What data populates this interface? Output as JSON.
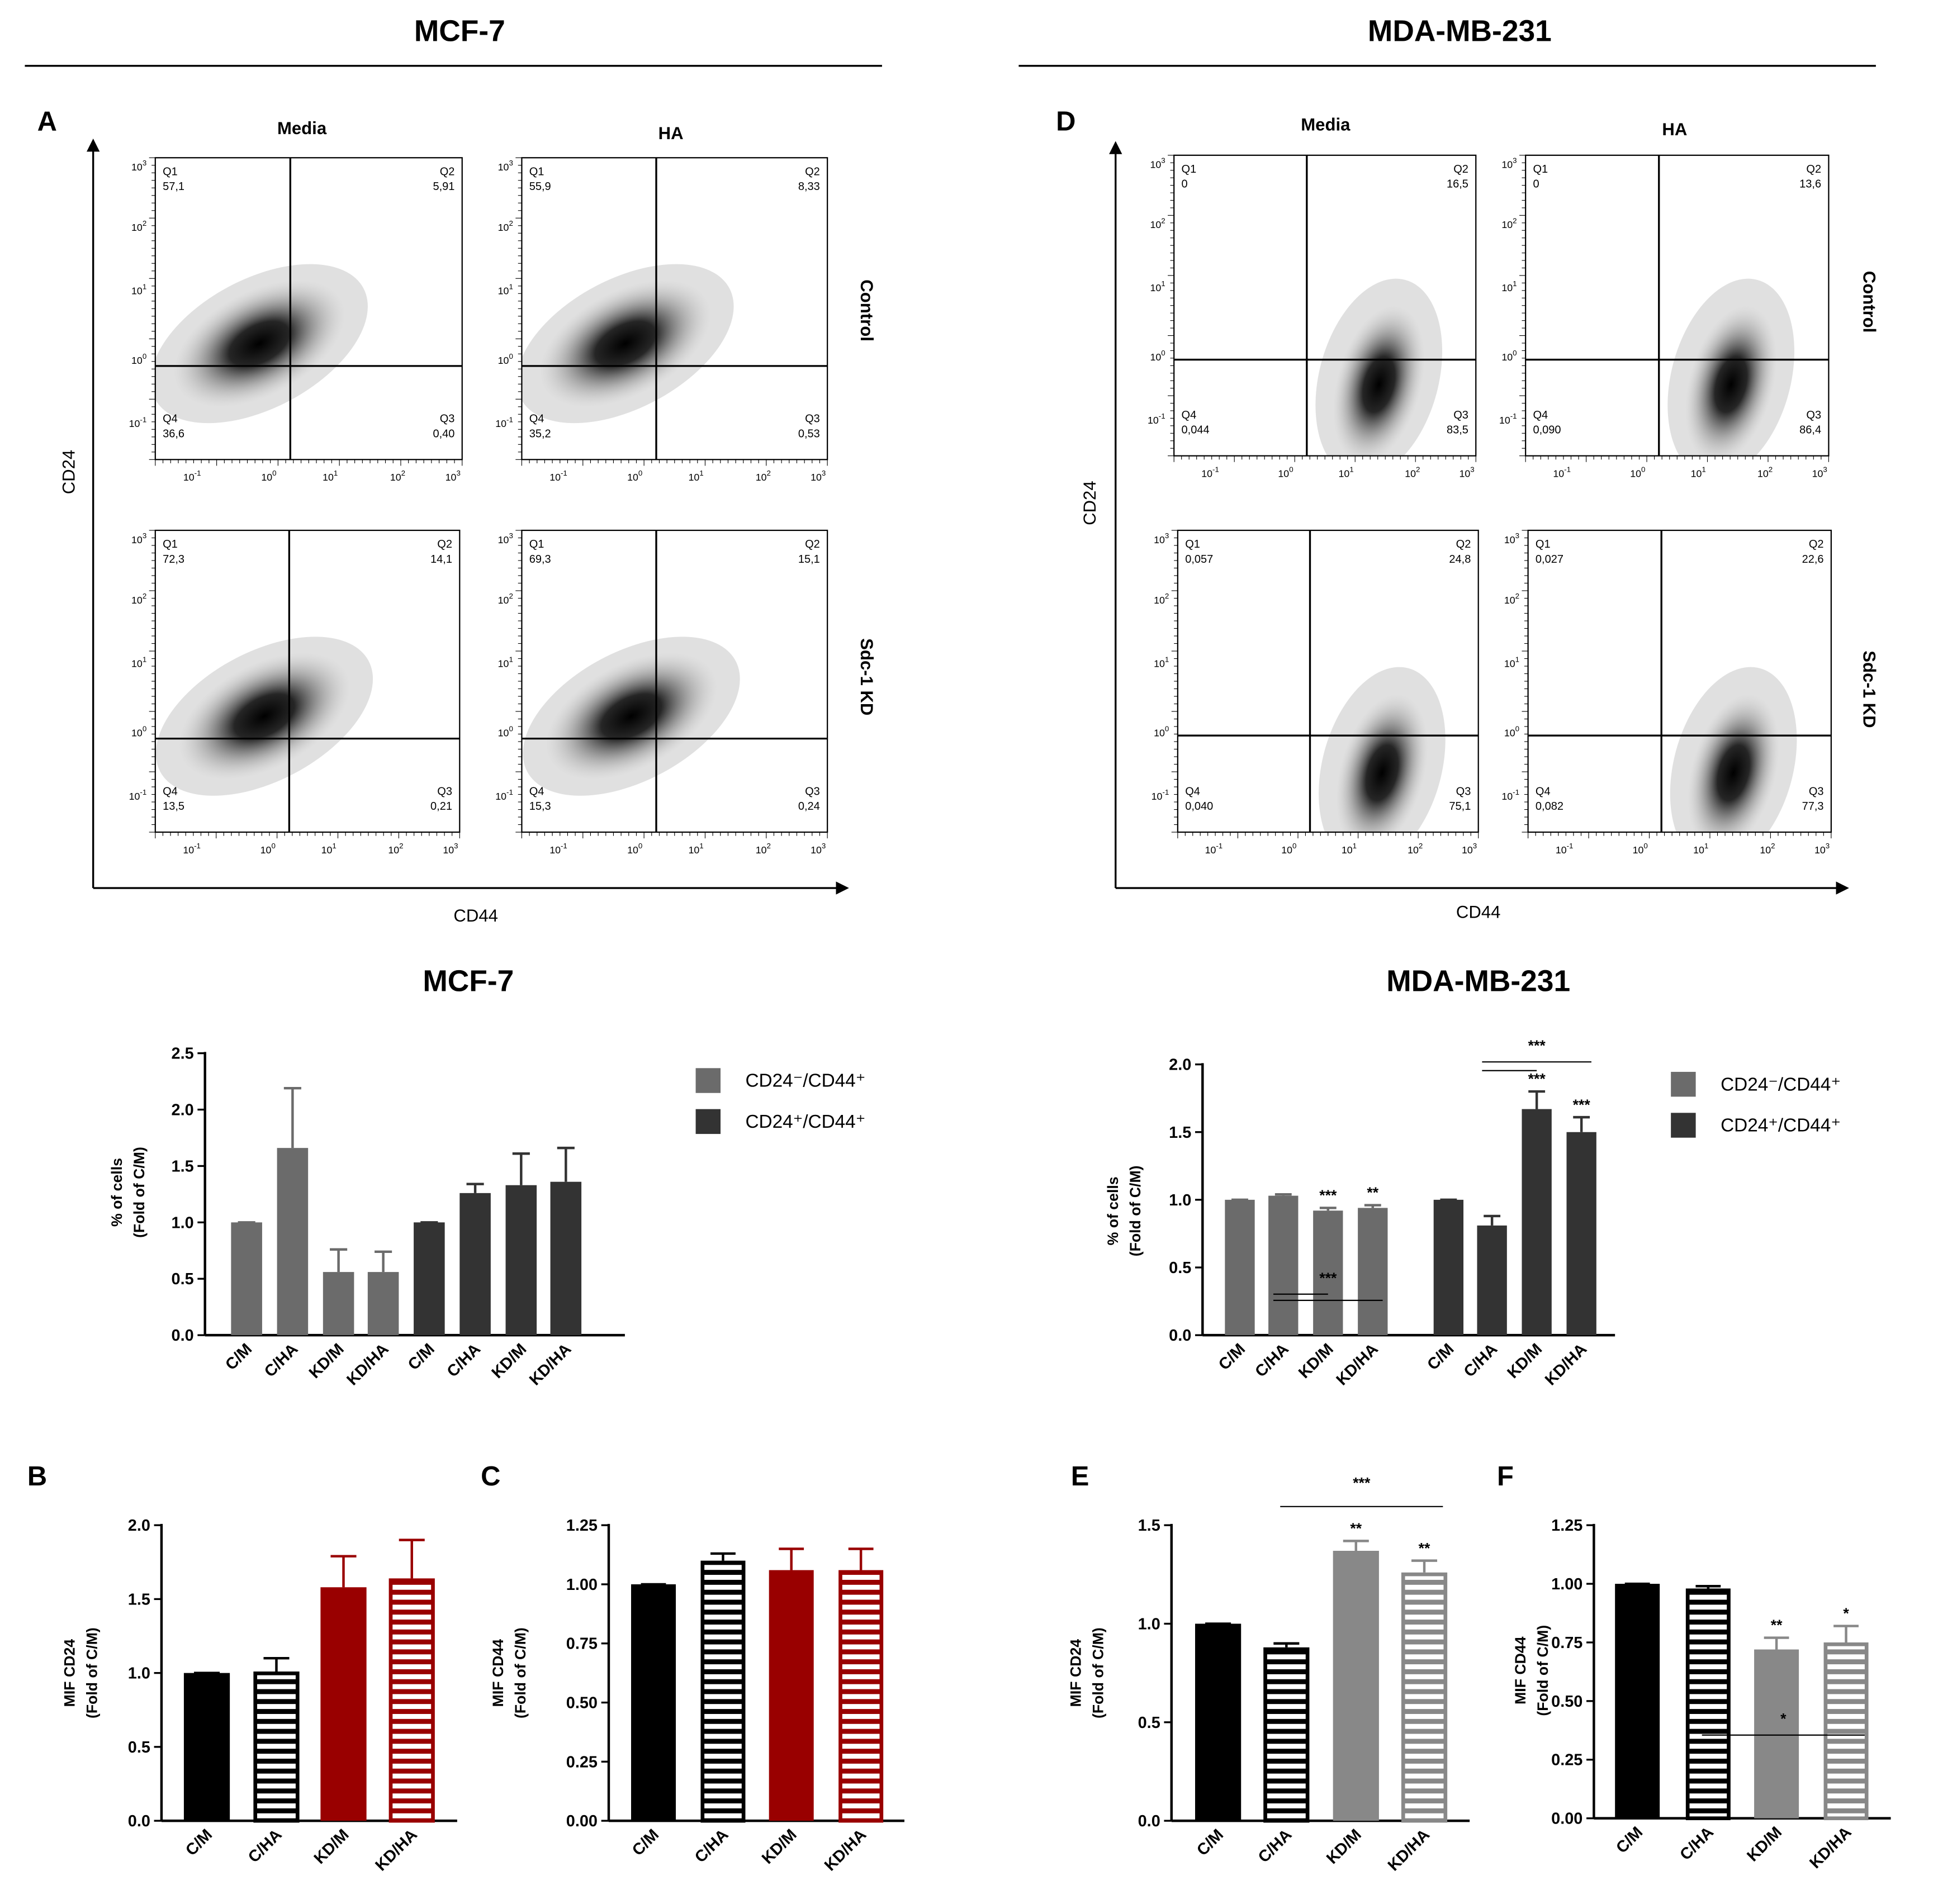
{
  "headers": [
    "MCF-7",
    "MDA-MB-231"
  ],
  "flow_axis": {
    "x_ticks": [
      {
        "base": "10",
        "exp": "-1"
      },
      {
        "base": "10",
        "exp": "0"
      },
      {
        "base": "10",
        "exp": "1"
      },
      {
        "base": "10",
        "exp": "2"
      },
      {
        "base": "10",
        "exp": "3"
      }
    ],
    "y_ticks": [
      {
        "base": "10",
        "exp": "3"
      },
      {
        "base": "10",
        "exp": "2"
      },
      {
        "base": "10",
        "exp": "1"
      },
      {
        "base": "10",
        "exp": "0"
      },
      {
        "base": "10",
        "exp": "-1"
      }
    ]
  },
  "flow": [
    {
      "panel": "A",
      "y_label": "CD24",
      "x_label": "CD44",
      "columns": [
        "Media",
        "HA"
      ],
      "rows": [
        "Control",
        "Sdc-1 KD"
      ],
      "plots": [
        {
          "quadrants": [
            {
              "name": "Q1",
              "value": "57,1"
            },
            {
              "name": "Q2",
              "value": "5,91"
            },
            {
              "name": "Q3",
              "value": "0,40"
            },
            {
              "name": "Q4",
              "value": "36,6"
            }
          ]
        },
        {
          "quadrants": [
            {
              "name": "Q1",
              "value": "55,9"
            },
            {
              "name": "Q2",
              "value": "8,33"
            },
            {
              "name": "Q3",
              "value": "0,53"
            },
            {
              "name": "Q4",
              "value": "35,2"
            }
          ]
        },
        {
          "quadrants": [
            {
              "name": "Q1",
              "value": "72,3"
            },
            {
              "name": "Q2",
              "value": "14,1"
            },
            {
              "name": "Q3",
              "value": "0,21"
            },
            {
              "name": "Q4",
              "value": "13,5"
            }
          ]
        },
        {
          "quadrants": [
            {
              "name": "Q1",
              "value": "69,3"
            },
            {
              "name": "Q2",
              "value": "15,1"
            },
            {
              "name": "Q3",
              "value": "0,24"
            },
            {
              "name": "Q4",
              "value": "15,3"
            }
          ]
        }
      ]
    },
    {
      "panel": "D",
      "y_label": "CD24",
      "x_label": "CD44",
      "columns": [
        "Media",
        "HA"
      ],
      "rows": [
        "Control",
        "Sdc-1 KD"
      ],
      "plots": [
        {
          "quadrants": [
            {
              "name": "Q1",
              "value": "0"
            },
            {
              "name": "Q2",
              "value": "16,5"
            },
            {
              "name": "Q3",
              "value": "83,5"
            },
            {
              "name": "Q4",
              "value": "0,044"
            }
          ]
        },
        {
          "quadrants": [
            {
              "name": "Q1",
              "value": "0"
            },
            {
              "name": "Q2",
              "value": "13,6"
            },
            {
              "name": "Q3",
              "value": "86,4"
            },
            {
              "name": "Q4",
              "value": "0,090"
            }
          ]
        },
        {
          "quadrants": [
            {
              "name": "Q1",
              "value": "0,057"
            },
            {
              "name": "Q2",
              "value": "24,8"
            },
            {
              "name": "Q3",
              "value": "75,1"
            },
            {
              "name": "Q4",
              "value": "0,040"
            }
          ]
        },
        {
          "quadrants": [
            {
              "name": "Q1",
              "value": "0,027"
            },
            {
              "name": "Q2",
              "value": "22,6"
            },
            {
              "name": "Q3",
              "value": "77,3"
            },
            {
              "name": "Q4",
              "value": "0,082"
            }
          ]
        }
      ]
    }
  ],
  "chart_data": [
    {
      "type": "grouped_bar",
      "title": "MCF-7",
      "ylabel": [
        "% of cells",
        "(Fold of C/M)"
      ],
      "categories": [
        "C/M",
        "C/HA",
        "KD/M",
        "KD/HA"
      ],
      "series": [
        {
          "name": "CD24⁻/CD44⁺",
          "color": "#6b6b6b",
          "values": [
            1,
            1.66,
            0.56,
            0.56
          ],
          "errors": [
            0,
            0.53,
            0.2,
            0.18
          ]
        },
        {
          "name": "CD24⁺/CD44⁺",
          "color": "#333333",
          "values": [
            1,
            1.26,
            1.33,
            1.36
          ],
          "errors": [
            0,
            0.08,
            0.28,
            0.3
          ]
        }
      ],
      "ylim": [
        0,
        2.5
      ],
      "yticks": [
        {
          "value": 0,
          "label": "0.0"
        },
        0.5,
        {
          "value": 1,
          "label": "1.0"
        },
        1.5,
        {
          "value": 2,
          "label": "2.0"
        },
        2.5
      ],
      "legend": "right"
    },
    {
      "type": "grouped_bar",
      "title": "MDA-MB-231",
      "ylabel": [
        "% of cells",
        "(Fold of C/M)"
      ],
      "categories": [
        "C/M",
        "C/HA",
        "KD/M",
        "KD/HA"
      ],
      "series": [
        {
          "name": "CD24⁻/CD44⁺",
          "color": "#6b6b6b",
          "values": [
            1,
            1.03,
            0.92,
            0.94
          ],
          "errors": [
            0,
            0.01,
            0.02,
            0.02
          ],
          "value_annotations": [
            null,
            null,
            "***",
            "**"
          ],
          "bracket_label": "***"
        },
        {
          "name": "CD24⁺/CD44⁺",
          "color": "#333333",
          "values": [
            1,
            0.81,
            1.67,
            1.5
          ],
          "errors": [
            0,
            0.07,
            0.13,
            0.11
          ],
          "value_annotations": [
            null,
            null,
            "***",
            "***"
          ],
          "bracket_label": "***"
        }
      ],
      "ylim": [
        0,
        2
      ],
      "yticks": [
        {
          "value": 0,
          "label": "0.0"
        },
        0.5,
        {
          "value": 1,
          "label": "1.0"
        },
        1.5,
        {
          "value": 2,
          "label": "2.0"
        }
      ],
      "legend": "right"
    },
    {
      "type": "bar",
      "panel": "B",
      "ylabel": [
        "MIF CD24",
        "(Fold of C/M)"
      ],
      "categories": [
        "C/M",
        "C/HA",
        "KD/M",
        "KD/HA"
      ],
      "values": [
        1,
        1.01,
        1.58,
        1.64
      ],
      "errors": [
        0,
        0.09,
        0.21,
        0.26
      ],
      "colors": [
        "#000000",
        "#000000",
        "#990000",
        "#990000"
      ],
      "hatch": [
        false,
        true,
        false,
        true
      ],
      "ylim": [
        0,
        2
      ],
      "yticks": [
        {
          "value": 0,
          "label": "0.0"
        },
        0.5,
        {
          "value": 1,
          "label": "1.0"
        },
        1.5,
        {
          "value": 2,
          "label": "2.0"
        }
      ]
    },
    {
      "type": "bar",
      "panel": "C",
      "ylabel": [
        "MIF CD44",
        "(Fold of C/M)"
      ],
      "categories": [
        "C/M",
        "C/HA",
        "KD/M",
        "KD/HA"
      ],
      "values": [
        1,
        1.1,
        1.06,
        1.06
      ],
      "errors": [
        0,
        0.03,
        0.09,
        0.09
      ],
      "colors": [
        "#000000",
        "#000000",
        "#990000",
        "#990000"
      ],
      "hatch": [
        false,
        true,
        false,
        true
      ],
      "ylim": [
        0,
        1.25
      ],
      "yticks": [
        {
          "value": 0,
          "label": "0.00"
        },
        0.25,
        {
          "value": 0.5,
          "label": "0.50"
        },
        0.75,
        {
          "value": 1,
          "label": "1.00"
        },
        1.25
      ]
    },
    {
      "type": "bar",
      "panel": "E",
      "ylabel": [
        "MIF CD24",
        "(Fold of C/M)"
      ],
      "categories": [
        "C/M",
        "C/HA",
        "KD/M",
        "KD/HA"
      ],
      "values": [
        1,
        0.88,
        1.37,
        1.26
      ],
      "errors": [
        0,
        0.02,
        0.05,
        0.06
      ],
      "colors": [
        "#000000",
        "#000000",
        "#888888",
        "#888888"
      ],
      "hatch": [
        false,
        true,
        false,
        true
      ],
      "value_annotations": [
        null,
        null,
        "**",
        "**"
      ],
      "bracket_label": "***",
      "ylim": [
        0,
        1.5
      ],
      "yticks": [
        {
          "value": 0,
          "label": "0.0"
        },
        0.5,
        {
          "value": 1,
          "label": "1.0"
        },
        1.5
      ]
    },
    {
      "type": "bar",
      "panel": "F",
      "ylabel": [
        "MIF CD44",
        "(Fold of C/M)"
      ],
      "categories": [
        "C/M",
        "C/HA",
        "KD/M",
        "KD/HA"
      ],
      "values": [
        1,
        0.98,
        0.72,
        0.75
      ],
      "errors": [
        0,
        0.01,
        0.05,
        0.07
      ],
      "colors": [
        "#000000",
        "#000000",
        "#888888",
        "#888888"
      ],
      "hatch": [
        false,
        true,
        false,
        true
      ],
      "value_annotations": [
        null,
        null,
        "**",
        "*"
      ],
      "bracket_label": "*",
      "ylim": [
        0,
        1.25
      ],
      "yticks": [
        {
          "value": 0,
          "label": "0.00"
        },
        0.25,
        {
          "value": 0.5,
          "label": "0.50"
        },
        0.75,
        {
          "value": 1,
          "label": "1.00"
        },
        1.25
      ]
    }
  ]
}
